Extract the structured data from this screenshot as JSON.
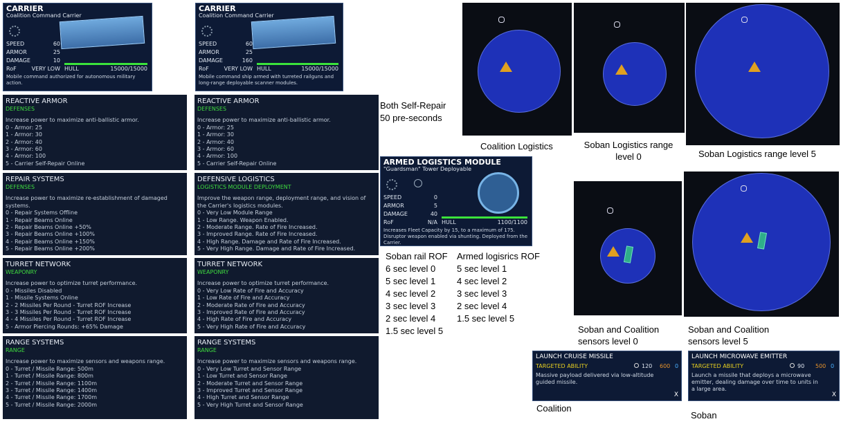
{
  "carrier_cards": [
    {
      "title": "CARRIER",
      "subtitle": "Coalition Command Carrier",
      "stats": [
        {
          "label": "SPEED",
          "value": 60
        },
        {
          "label": "ARMOR",
          "value": 25
        },
        {
          "label": "DAMAGE",
          "value": 10
        }
      ],
      "rof_label": "RoF",
      "rof_value": "VERY LOW",
      "hull_label": "HULL",
      "hull_value": "15000/15000",
      "description": "Mobile command authorized for autonomous military action."
    },
    {
      "title": "CARRIER",
      "subtitle": "Coalition Command Carrier",
      "stats": [
        {
          "label": "SPEED",
          "value": 60
        },
        {
          "label": "ARMOR",
          "value": 25
        },
        {
          "label": "DAMAGE",
          "value": 160
        }
      ],
      "rof_label": "RoF",
      "rof_value": "VERY LOW",
      "hull_label": "HULL",
      "hull_value": "15000/15000",
      "description": "Mobile command ship armed with turreted railguns and long-range deployable scanner modules."
    }
  ],
  "panels": [
    {
      "title": "REACTIVE ARMOR",
      "category": "DEFENSES",
      "description": "Increase power to maximize anti-ballistic armor.",
      "levels": [
        "0 - Armor: 25",
        "1 - Armor: 30",
        "2 - Armor: 40",
        "3 - Armor: 60",
        "4 - Armor: 100",
        "5 - Carrier Self-Repair Online"
      ]
    },
    {
      "title": "REPAIR SYSTEMS",
      "category": "DEFENSES",
      "description": "Increase power to maximize re-establishment of damaged systems.",
      "levels": [
        "0 - Repair Systems Offline",
        "1 - Repair Beams Online",
        "2 - Repair Beams Online +50%",
        "3 - Repair Beams Online +100%",
        "4 - Repair Beams Online +150%",
        "5 - Repair Beams Online +200%"
      ]
    },
    {
      "title": "TURRET NETWORK",
      "category": "WEAPONRY",
      "description": "Increase power to optimize turret performance.",
      "levels": [
        "0 - Missiles Disabled",
        "1 - Missile Systems Online",
        "2 - 2 Missiles Per Round - Turret ROF Increase",
        "3 - 3 Missiles Per Round - Turret ROF Increase",
        "4 - 4 Missiles Per Round - Turret ROF Increase",
        "5 - Armor Piercing Rounds: +65% Damage"
      ]
    },
    {
      "title": "RANGE SYSTEMS",
      "category": "RANGE",
      "description": "Increase power to maximize sensors and weapons range.",
      "levels": [
        "0 - Turret / Missile Range: 500m",
        "1 - Turret / Missile Range: 800m",
        "2 - Turret / Missile Range: 1100m",
        "3 - Turret / Missile Range: 1400m",
        "4 - Turret / Missile Range: 1700m",
        "5 - Turret / Missile Range: 2000m"
      ]
    },
    {
      "title": "REACTIVE ARMOR",
      "category": "DEFENSES",
      "description": "Increase power to maximize anti-ballistic armor.",
      "levels": [
        "0 - Armor: 25",
        "1 - Armor: 30",
        "2 - Armor: 40",
        "3 - Armor: 60",
        "4 - Armor: 100",
        "5 - Carrier Self-Repair Online"
      ]
    },
    {
      "title": "DEFENSIVE LOGISTICS",
      "category": "LOGISTICS MODULE DEPLOYMENT",
      "description": "Improve the weapon range, deployment range, and vision of the Carrier's logistics modules.",
      "levels": [
        "0 - Very Low Module Range",
        "1 - Low Range. Weapon Enabled.",
        "2 - Moderate Range. Rate of Fire Increased.",
        "3 - Improved Range. Rate of Fire Increased.",
        "4 - High Range. Damage and Rate of Fire Increased.",
        "5 - Very High Range. Damage and Rate of Fire Increased."
      ]
    },
    {
      "title": "TURRET NETWORK",
      "category": "WEAPONRY",
      "description": "Increase power to optimize turret performance.",
      "levels": [
        "0 - Very Low Rate of Fire and Accuracy",
        "1 - Low Rate of Fire and Accuracy",
        "2 - Moderate Rate of Fire and Accuracy",
        "3 - Improved Rate of Fire and Accuracy",
        "4 - High Rate of Fire and Accuracy",
        "5 - Very High Rate of Fire and Accuracy"
      ]
    },
    {
      "title": "RANGE SYSTEMS",
      "category": "RANGE",
      "description": "Increase power to maximize sensors and weapons range.",
      "levels": [
        "0 - Very Low Turret and Sensor Range",
        "1 - Low Turret and Sensor Range",
        "2 - Moderate Turret and Sensor Range",
        "3 - Improved Turret and Sensor Range",
        "4 - High Turret and Sensor Range",
        "5 - Very High Turret and Sensor Range"
      ]
    }
  ],
  "notes": [
    "Both Self-Repair",
    "50 pre-seconds"
  ],
  "module_card": {
    "title": "ARMED LOGISTICS MODULE",
    "subtitle": "\"Guardsman\" Tower Deployable",
    "stats": [
      {
        "label": "SPEED",
        "value": 0
      },
      {
        "label": "ARMOR",
        "value": 5
      },
      {
        "label": "DAMAGE",
        "value": 40
      }
    ],
    "rof_label": "RoF",
    "rof_value": "N/A",
    "hull_label": "HULL",
    "hull_value": "1100/1100",
    "description": "Increases Fleet Capacity by 15, to a maximum of 175. Disruptor weapon enabled via shunting.  Deployed from the Carrier."
  },
  "rof_lists": [
    {
      "title": "Soban rail ROF",
      "items": [
        "6 sec level 0",
        "5 sec level 1",
        "4 sec level 2",
        "3 sec level 3",
        "2 sec level 4",
        "1.5 sec level 5"
      ]
    },
    {
      "title": "Armed logisrics ROF",
      "items": [
        "5 sec level 1",
        "4 sec level 2",
        "3 sec level 3",
        "2 sec level 4",
        "1.5 sec level 5"
      ]
    }
  ],
  "maps": [
    {
      "caption": "Coalition Logistics"
    },
    {
      "caption": "Soban Logistics range level 0"
    },
    {
      "caption": "Soban Logistics range level 5"
    },
    {
      "caption": "Soban and Coalition sensors level 0"
    },
    {
      "caption": "Soban and Coalition sensors level 5"
    }
  ],
  "abilities": [
    {
      "title": "LAUNCH CRUISE MISSILE",
      "type": "TARGETED ABILITY",
      "cooldown": 120,
      "cost": 600,
      "energy": 0,
      "description": "Massive payload delivered via low-altitude guided missile.",
      "close": "X",
      "caption": "Coalition"
    },
    {
      "title": "LAUNCH MICROWAVE EMITTER",
      "type": "TARGETED ABILITY",
      "cooldown": 90,
      "cost": 500,
      "energy": 0,
      "description": "Launch a missile that deploys a microwave emitter, dealing damage over time to units in a large area.",
      "close": "X",
      "caption": "Soban"
    }
  ]
}
